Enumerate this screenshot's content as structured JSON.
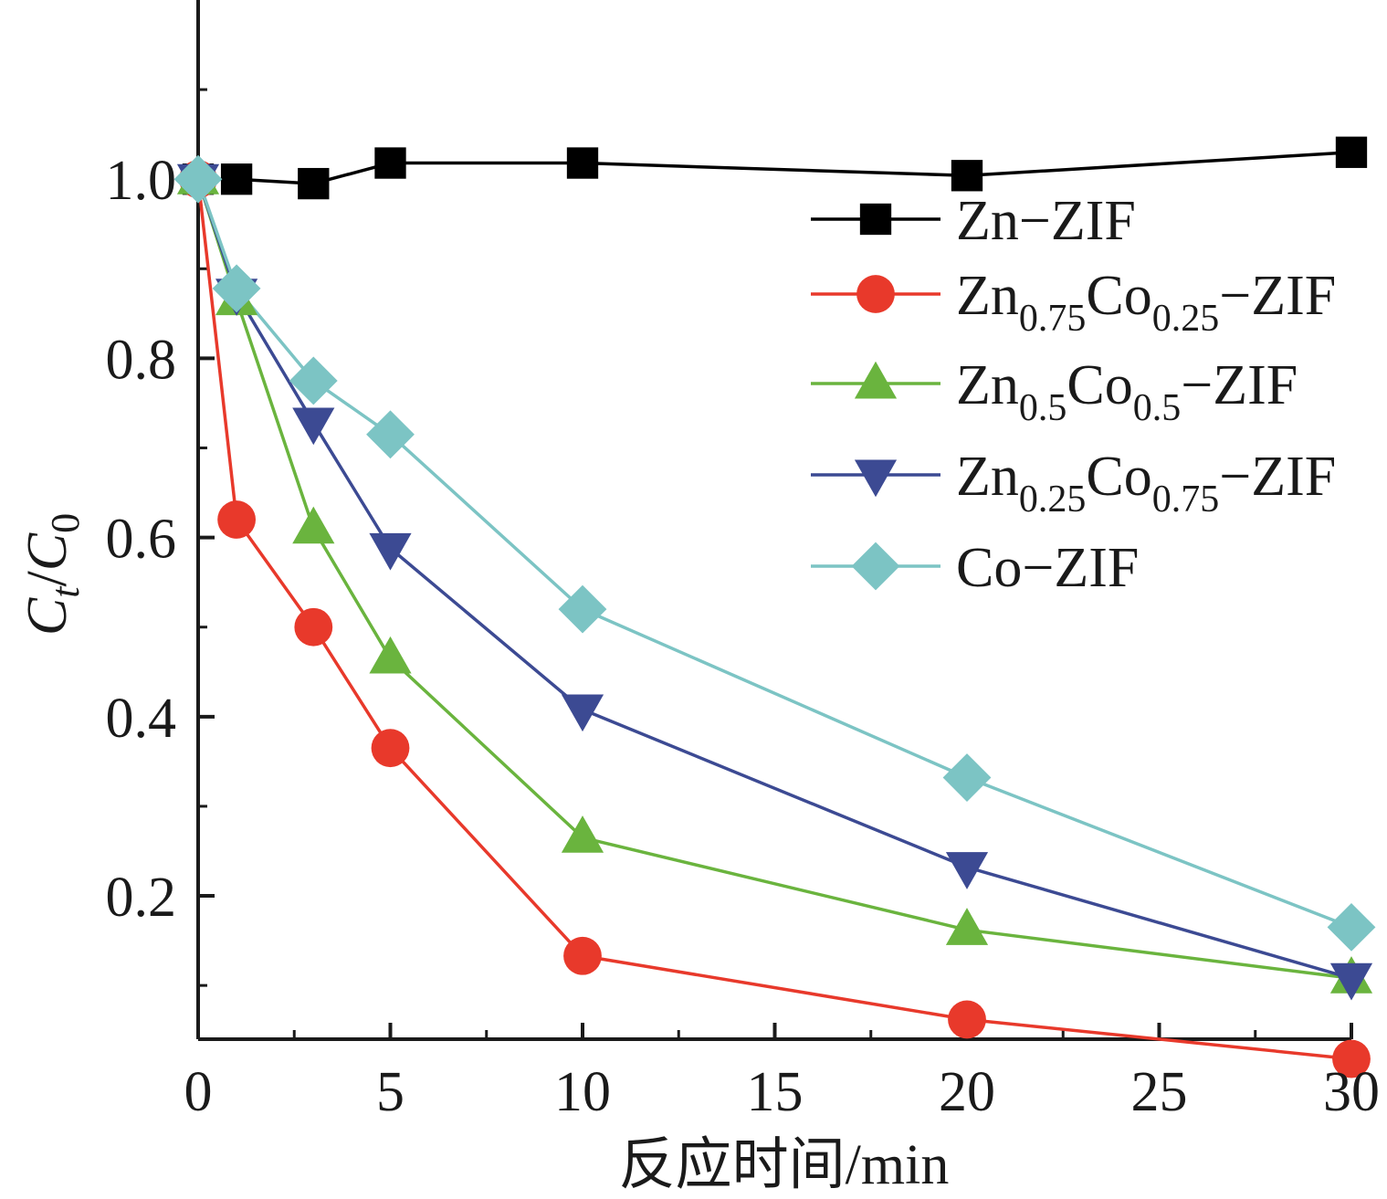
{
  "chart_data": {
    "type": "line",
    "xlabel": "反应时间/min",
    "ylabel": {
      "var": "C",
      "sub_num": "t",
      "sep": "/",
      "var2": "C",
      "sub_den": "0"
    },
    "xlim": [
      0,
      30
    ],
    "ylim": [
      0.04,
      1.2
    ],
    "x_ticks": [
      0,
      5,
      10,
      15,
      20,
      25,
      30
    ],
    "y_ticks": [
      0.2,
      0.4,
      0.6,
      0.8,
      1.0
    ],
    "x_tick_labels": [
      "0",
      "5",
      "10",
      "15",
      "20",
      "25",
      "30"
    ],
    "y_tick_labels": [
      "0.2",
      "0.4",
      "0.6",
      "0.8",
      "1.0"
    ],
    "grid": false,
    "legend_position": "top-right",
    "series": [
      {
        "name": "Zn−ZIF",
        "name_parts": [
          {
            "t": "Zn−ZIF"
          }
        ],
        "color": "#000000",
        "marker": "square",
        "x": [
          0,
          1,
          3,
          5,
          10,
          20,
          30
        ],
        "y": [
          1.0,
          1.0,
          0.995,
          1.018,
          1.018,
          1.004,
          1.03
        ]
      },
      {
        "name": "Zn0.75Co0.25−ZIF",
        "name_parts": [
          {
            "t": "Zn"
          },
          {
            "t": "0.75",
            "sub": true
          },
          {
            "t": "Co"
          },
          {
            "t": "0.25",
            "sub": true
          },
          {
            "t": "−ZIF"
          }
        ],
        "color": "#e8392b",
        "marker": "circle",
        "x": [
          0,
          1,
          3,
          5,
          10,
          20,
          30
        ],
        "y": [
          1.0,
          0.62,
          0.5,
          0.365,
          0.133,
          0.062,
          0.018
        ]
      },
      {
        "name": "Zn0.5Co0.5−ZIF",
        "name_parts": [
          {
            "t": "Zn"
          },
          {
            "t": "0.5",
            "sub": true
          },
          {
            "t": "Co"
          },
          {
            "t": "0.5",
            "sub": true
          },
          {
            "t": "−ZIF"
          }
        ],
        "color": "#6ab43e",
        "marker": "triangle-up",
        "x": [
          0,
          1,
          3,
          5,
          10,
          20,
          30
        ],
        "y": [
          1.0,
          0.865,
          0.61,
          0.465,
          0.265,
          0.162,
          0.108
        ]
      },
      {
        "name": "Zn0.25Co0.75−ZIF",
        "name_parts": [
          {
            "t": "Zn"
          },
          {
            "t": "0.25",
            "sub": true
          },
          {
            "t": "Co"
          },
          {
            "t": "0.75",
            "sub": true
          },
          {
            "t": "−ZIF"
          }
        ],
        "color": "#3c4a93",
        "marker": "triangle-down",
        "x": [
          0,
          1,
          3,
          5,
          10,
          20,
          30
        ],
        "y": [
          1.0,
          0.872,
          0.728,
          0.588,
          0.408,
          0.232,
          0.108
        ]
      },
      {
        "name": "Co−ZIF",
        "name_parts": [
          {
            "t": "Co−ZIF"
          }
        ],
        "color": "#7cc4c4",
        "marker": "diamond",
        "x": [
          0,
          1,
          3,
          5,
          10,
          20,
          30
        ],
        "y": [
          1.0,
          0.878,
          0.775,
          0.715,
          0.52,
          0.332,
          0.165
        ]
      }
    ]
  }
}
